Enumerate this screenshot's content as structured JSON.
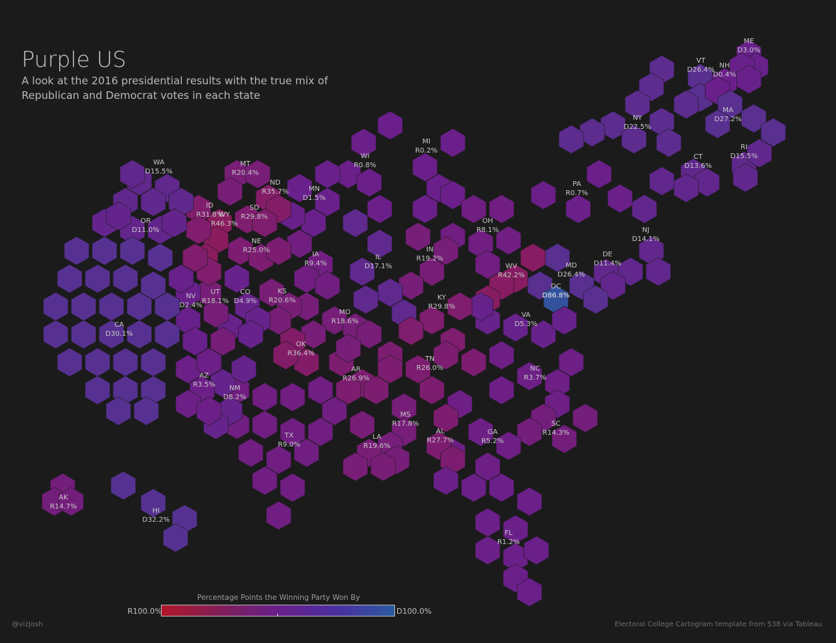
{
  "header": {
    "title": "Purple US",
    "subtitle": "A look at the 2016 presidential results with the true mix of Republican and Democrat votes in each state"
  },
  "colors": {
    "background": "#1b1b1b",
    "republican_max": "#b0182b",
    "democrat_max": "#2a5aa0",
    "neutral_purple": "#6a1f8a"
  },
  "legend": {
    "title": "Percentage Points the Winning Party Won By",
    "left_label": "R100.0%",
    "right_label": "D100.0%"
  },
  "footer": {
    "credit": "@vizJosh",
    "source": "Electoral College Cartogram template from 538 via Tableau"
  },
  "states": [
    {
      "abbr": "ME",
      "value": "D3.0%",
      "party": "D",
      "margin": 3.0
    },
    {
      "abbr": "VT",
      "value": "D26.4%",
      "party": "D",
      "margin": 26.4
    },
    {
      "abbr": "NH",
      "value": "D0.4%",
      "party": "D",
      "margin": 0.4
    },
    {
      "abbr": "MA",
      "value": "D27.2%",
      "party": "D",
      "margin": 27.2
    },
    {
      "abbr": "NY",
      "value": "D22.5%",
      "party": "D",
      "margin": 22.5
    },
    {
      "abbr": "RI",
      "value": "D15.5%",
      "party": "D",
      "margin": 15.5
    },
    {
      "abbr": "CT",
      "value": "D13.6%",
      "party": "D",
      "margin": 13.6
    },
    {
      "abbr": "MI",
      "value": "R0.2%",
      "party": "R",
      "margin": 0.2
    },
    {
      "abbr": "WI",
      "value": "R0.8%",
      "party": "R",
      "margin": 0.8
    },
    {
      "abbr": "PA",
      "value": "R0.7%",
      "party": "R",
      "margin": 0.7
    },
    {
      "abbr": "NJ",
      "value": "D14.1%",
      "party": "D",
      "margin": 14.1
    },
    {
      "abbr": "DE",
      "value": "D11.4%",
      "party": "D",
      "margin": 11.4
    },
    {
      "abbr": "MD",
      "value": "D26.4%",
      "party": "D",
      "margin": 26.4
    },
    {
      "abbr": "DC",
      "value": "D86.8%",
      "party": "D",
      "margin": 86.8
    },
    {
      "abbr": "OH",
      "value": "R8.1%",
      "party": "R",
      "margin": 8.1
    },
    {
      "abbr": "IN",
      "value": "R19.2%",
      "party": "R",
      "margin": 19.2
    },
    {
      "abbr": "IL",
      "value": "D17.1%",
      "party": "D",
      "margin": 17.1
    },
    {
      "abbr": "WV",
      "value": "R42.2%",
      "party": "R",
      "margin": 42.2
    },
    {
      "abbr": "VA",
      "value": "D5.3%",
      "party": "D",
      "margin": 5.3
    },
    {
      "abbr": "KY",
      "value": "R29.8%",
      "party": "R",
      "margin": 29.8
    },
    {
      "abbr": "NC",
      "value": "R3.7%",
      "party": "R",
      "margin": 3.7
    },
    {
      "abbr": "TN",
      "value": "R26.0%",
      "party": "R",
      "margin": 26.0
    },
    {
      "abbr": "SC",
      "value": "R14.3%",
      "party": "R",
      "margin": 14.3
    },
    {
      "abbr": "GA",
      "value": "R5.2%",
      "party": "R",
      "margin": 5.2
    },
    {
      "abbr": "AL",
      "value": "R27.7%",
      "party": "R",
      "margin": 27.7
    },
    {
      "abbr": "MS",
      "value": "R17.8%",
      "party": "R",
      "margin": 17.8
    },
    {
      "abbr": "FL",
      "value": "R1.2%",
      "party": "R",
      "margin": 1.2
    },
    {
      "abbr": "LA",
      "value": "R19.6%",
      "party": "R",
      "margin": 19.6
    },
    {
      "abbr": "AR",
      "value": "R26.9%",
      "party": "R",
      "margin": 26.9
    },
    {
      "abbr": "MO",
      "value": "R18.6%",
      "party": "R",
      "margin": 18.6
    },
    {
      "abbr": "IA",
      "value": "R9.4%",
      "party": "R",
      "margin": 9.4
    },
    {
      "abbr": "MN",
      "value": "D1.5%",
      "party": "D",
      "margin": 1.5
    },
    {
      "abbr": "ND",
      "value": "R35.7%",
      "party": "R",
      "margin": 35.7
    },
    {
      "abbr": "SD",
      "value": "R29.8%",
      "party": "R",
      "margin": 29.8
    },
    {
      "abbr": "NE",
      "value": "R25.0%",
      "party": "R",
      "margin": 25.0
    },
    {
      "abbr": "KS",
      "value": "R20.6%",
      "party": "R",
      "margin": 20.6
    },
    {
      "abbr": "OK",
      "value": "R36.4%",
      "party": "R",
      "margin": 36.4
    },
    {
      "abbr": "TX",
      "value": "R9.0%",
      "party": "R",
      "margin": 9.0
    },
    {
      "abbr": "NM",
      "value": "D8.2%",
      "party": "D",
      "margin": 8.2
    },
    {
      "abbr": "AZ",
      "value": "R3.5%",
      "party": "R",
      "margin": 3.5
    },
    {
      "abbr": "CO",
      "value": "D4.9%",
      "party": "D",
      "margin": 4.9
    },
    {
      "abbr": "UT",
      "value": "R18.1%",
      "party": "R",
      "margin": 18.1
    },
    {
      "abbr": "WY",
      "value": "R46.3%",
      "party": "R",
      "margin": 46.3
    },
    {
      "abbr": "MT",
      "value": "R20.4%",
      "party": "R",
      "margin": 20.4
    },
    {
      "abbr": "ID",
      "value": "R31.8%",
      "party": "R",
      "margin": 31.8
    },
    {
      "abbr": "WA",
      "value": "D15.5%",
      "party": "D",
      "margin": 15.5
    },
    {
      "abbr": "OR",
      "value": "D11.0%",
      "party": "D",
      "margin": 11.0
    },
    {
      "abbr": "NV",
      "value": "D2.4%",
      "party": "D",
      "margin": 2.4
    },
    {
      "abbr": "CA",
      "value": "D30.1%",
      "party": "D",
      "margin": 30.1
    },
    {
      "abbr": "AK",
      "value": "R14.7%",
      "party": "R",
      "margin": 14.7
    },
    {
      "abbr": "HI",
      "value": "D32.2%",
      "party": "D",
      "margin": 32.2
    }
  ]
}
